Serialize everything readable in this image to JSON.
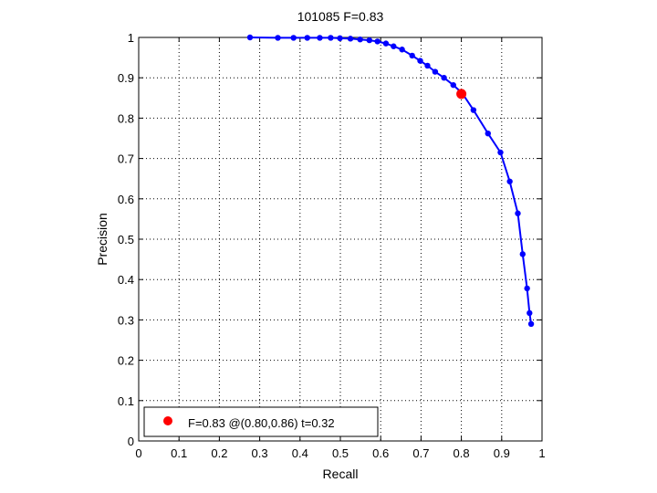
{
  "chart_data": {
    "type": "line",
    "title": "101085 F=0.83",
    "xlabel": "Recall",
    "ylabel": "Precision",
    "xlim": [
      0,
      1
    ],
    "ylim": [
      0,
      1
    ],
    "grid": true,
    "xticks": [
      "0",
      "0.1",
      "0.2",
      "0.3",
      "0.4",
      "0.5",
      "0.6",
      "0.7",
      "0.8",
      "0.9",
      "1"
    ],
    "yticks": [
      "0",
      "0.1",
      "0.2",
      "0.3",
      "0.4",
      "0.5",
      "0.6",
      "0.7",
      "0.8",
      "0.9",
      "1"
    ],
    "series": [
      {
        "color": "#0000ff",
        "x": [
          0.276,
          0.345,
          0.384,
          0.418,
          0.449,
          0.476,
          0.499,
          0.525,
          0.549,
          0.572,
          0.592,
          0.613,
          0.632,
          0.653,
          0.678,
          0.698,
          0.716,
          0.735,
          0.757,
          0.78,
          0.802,
          0.83,
          0.866,
          0.897,
          0.92,
          0.94,
          0.952,
          0.963,
          0.969,
          0.973
        ],
        "y": [
          1.0,
          0.999,
          0.999,
          0.999,
          0.999,
          0.999,
          0.998,
          0.997,
          0.995,
          0.993,
          0.99,
          0.985,
          0.978,
          0.97,
          0.955,
          0.942,
          0.93,
          0.915,
          0.9,
          0.882,
          0.862,
          0.82,
          0.762,
          0.715,
          0.643,
          0.564,
          0.463,
          0.378,
          0.317,
          0.29
        ]
      }
    ],
    "highlight_point": {
      "x": 0.8,
      "y": 0.86,
      "color": "#ff0000"
    },
    "legend": {
      "position": "bottom-left",
      "label": "F=0.83 @(0.80,0.86) t=0.32"
    }
  }
}
